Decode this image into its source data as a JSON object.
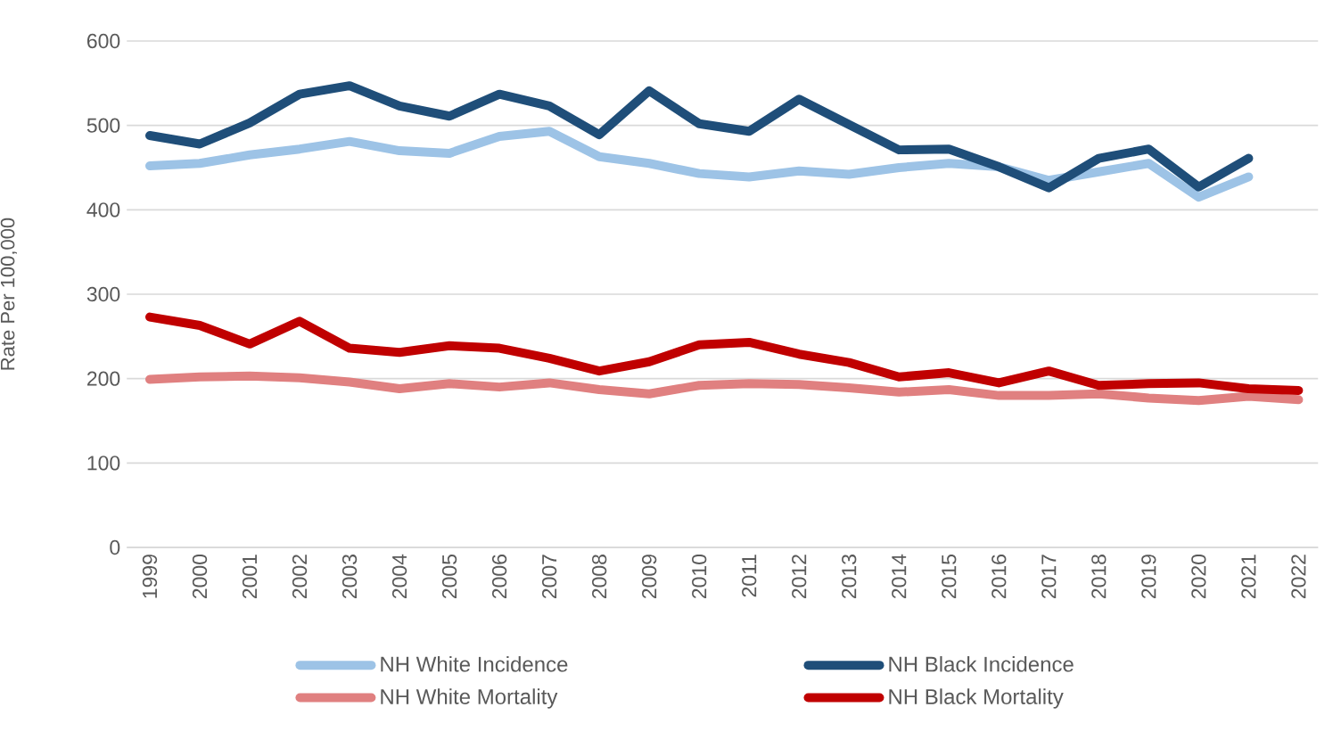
{
  "chart_data": {
    "type": "line",
    "ylabel": "Rate Per 100,000",
    "categories": [
      "1999",
      "2000",
      "2001",
      "2002",
      "2003",
      "2004",
      "2005",
      "2006",
      "2007",
      "2008",
      "2009",
      "2010",
      "2011",
      "2012",
      "2013",
      "2014",
      "2015",
      "2016",
      "2017",
      "2018",
      "2019",
      "2020",
      "2021",
      "2022"
    ],
    "series": [
      {
        "name": "NH White Incidence",
        "color": "#9dc3e6",
        "values": [
          452,
          455,
          465,
          472,
          481,
          470,
          467,
          487,
          493,
          463,
          455,
          443,
          439,
          446,
          442,
          450,
          455,
          451,
          435,
          445,
          455,
          415,
          439,
          null
        ]
      },
      {
        "name": "NH Black Incidence",
        "color": "#1f4e79",
        "values": [
          488,
          478,
          503,
          537,
          547,
          523,
          511,
          537,
          523,
          489,
          541,
          502,
          493,
          531,
          501,
          471,
          472,
          451,
          426,
          461,
          472,
          427,
          461,
          null
        ]
      },
      {
        "name": "NH White Mortality",
        "color": "#e08080",
        "values": [
          199,
          202,
          203,
          201,
          196,
          188,
          194,
          190,
          195,
          187,
          182,
          192,
          194,
          193,
          189,
          184,
          187,
          180,
          180,
          182,
          177,
          174,
          179,
          175
        ]
      },
      {
        "name": "NH Black Mortality",
        "color": "#c00000",
        "values": [
          273,
          263,
          241,
          268,
          236,
          231,
          239,
          236,
          224,
          209,
          220,
          240,
          243,
          229,
          219,
          202,
          207,
          195,
          209,
          192,
          194,
          195,
          188,
          186
        ]
      }
    ],
    "ylim": [
      0,
      600
    ],
    "yticks": [
      0,
      100,
      200,
      300,
      400,
      500,
      600
    ],
    "grid": "y",
    "legend": "bottom"
  }
}
